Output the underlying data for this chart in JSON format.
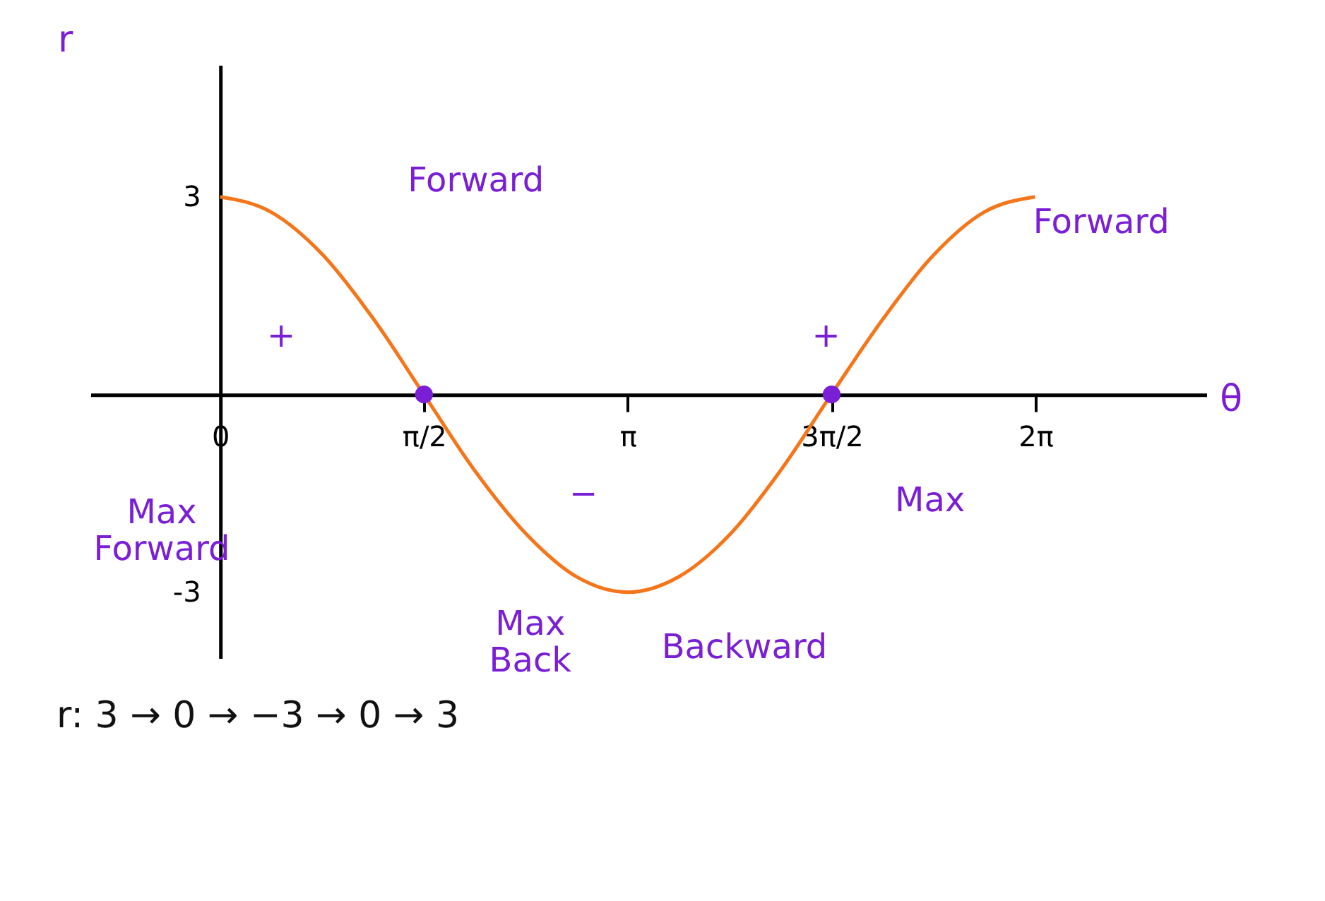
{
  "chart_data": {
    "type": "line",
    "xlabel": "θ",
    "ylabel": "r",
    "xlim": [
      -1,
      7.6
    ],
    "ylim": [
      -4,
      5
    ],
    "xticks": [
      {
        "value": 0,
        "label": "0"
      },
      {
        "value": 1.5708,
        "label": "π/2"
      },
      {
        "value": 3.1416,
        "label": "π"
      },
      {
        "value": 4.7124,
        "label": "3π/2"
      },
      {
        "value": 6.2832,
        "label": "2π"
      }
    ],
    "yticks": [
      -3,
      3
    ],
    "series": [
      {
        "color": "#f5761a",
        "x": [
          0,
          0.39,
          0.79,
          1.18,
          1.57,
          1.96,
          2.36,
          2.75,
          3.14,
          3.53,
          3.93,
          4.32,
          4.71,
          5.11,
          5.5,
          5.89,
          6.28
        ],
        "values": [
          3,
          2.77,
          2.12,
          1.15,
          0,
          -1.15,
          -2.12,
          -2.77,
          -3,
          -2.77,
          -2.12,
          -1.15,
          0,
          1.15,
          2.12,
          2.77,
          3
        ]
      },
      {
        "type": "scatter",
        "color": "#7a1fd6",
        "marker": "circle",
        "x": [
          1.5708,
          4.7124
        ],
        "values": [
          0,
          0
        ]
      }
    ],
    "annotations": [
      "Forward",
      "Forward",
      "+",
      "+",
      "−",
      "Max\nForward",
      "Max",
      "Max\nBack",
      "Backward",
      "r:  3  →  0  →  −3  →  0  →  3"
    ]
  }
}
